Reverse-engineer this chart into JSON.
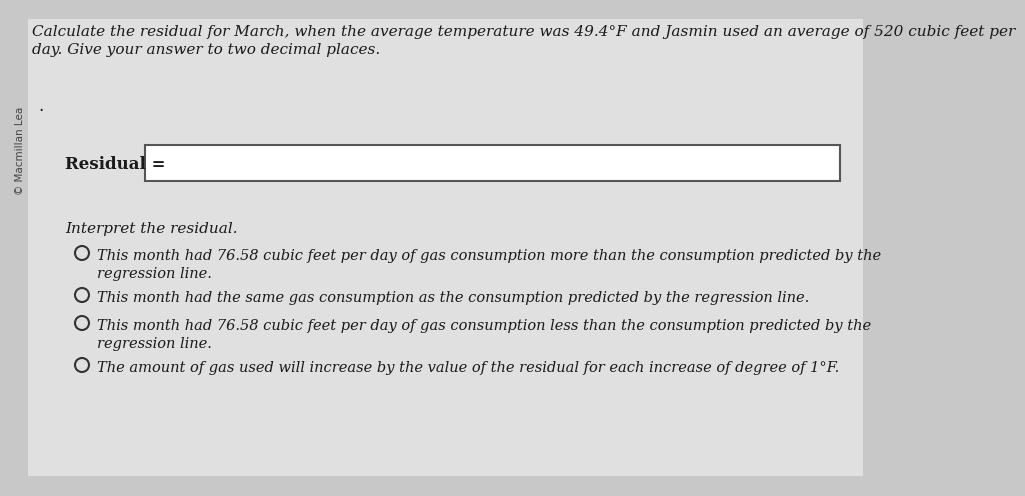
{
  "bg_color": "#c8c8c8",
  "content_bg": "#e8e8e8",
  "title_line1": "Calculate the residual for March, when the average temperature was 49.4°F and Jasmin used an average of 520 cubic feet per",
  "title_line2": "day. Give your answer to two decimal places.",
  "watermark": "© Macmillan Lea",
  "residual_label": "Residual =",
  "interpret_label": "Interpret the residual.",
  "options": [
    "This month had 76.58 cubic feet per day of gas consumption more than the consumption predicted by the\nregression line.",
    "This month had the same gas consumption as the consumption predicted by the regression line.",
    "This month had 76.58 cubic feet per day of gas consumption less than the consumption predicted by the\nregression line.",
    "The amount of gas used will increase by the value of the residual for each increase of degree of 1°F."
  ],
  "title_fontsize": 11.0,
  "body_fontsize": 11.0,
  "option_fontsize": 10.5,
  "watermark_fontsize": 7.5,
  "text_color": "#1a1a1a"
}
